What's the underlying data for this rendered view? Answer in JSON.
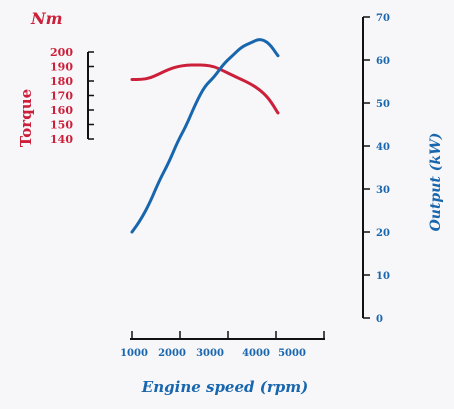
{
  "chart_data": {
    "type": "line",
    "unit_label": "Nm",
    "xlabel": "Engine speed (rpm)",
    "x_ticks": [
      "1000",
      "2000",
      "3000",
      "4000",
      "5000"
    ],
    "xlim": [
      1000,
      5000
    ],
    "left_axis": {
      "label": "Torque",
      "ticks": [
        "200",
        "190",
        "180",
        "170",
        "160",
        "150",
        "140"
      ],
      "ylim": [
        140,
        200
      ],
      "color": "#cc1f3a"
    },
    "right_axis": {
      "label": "Output (kW)",
      "ticks": [
        "70",
        "60",
        "50",
        "40",
        "30",
        "20",
        "10",
        "0"
      ],
      "ylim": [
        0,
        70
      ],
      "color": "#1866ad"
    },
    "series": [
      {
        "axis": "left",
        "color": "#cc1f3a",
        "x": [
          1000,
          1250,
          1500,
          1750,
          2000,
          2250,
          2500,
          2750,
          3000,
          3250,
          3500,
          3750,
          4000,
          4250,
          4500,
          4750,
          5000
        ],
        "values": [
          181,
          181,
          182,
          185,
          188,
          190,
          191,
          191,
          191,
          190,
          187,
          184,
          181,
          178,
          174,
          168,
          158
        ]
      },
      {
        "axis": "right",
        "color": "#1866ad",
        "x": [
          1000,
          1250,
          1500,
          1750,
          2000,
          2250,
          2500,
          2750,
          3000,
          3250,
          3500,
          3750,
          4000,
          4250,
          4500,
          4750,
          5000
        ],
        "values": [
          20,
          23,
          27,
          32,
          36,
          41,
          45,
          50,
          54,
          56,
          59,
          61,
          63,
          64,
          65,
          64,
          61
        ]
      }
    ]
  }
}
